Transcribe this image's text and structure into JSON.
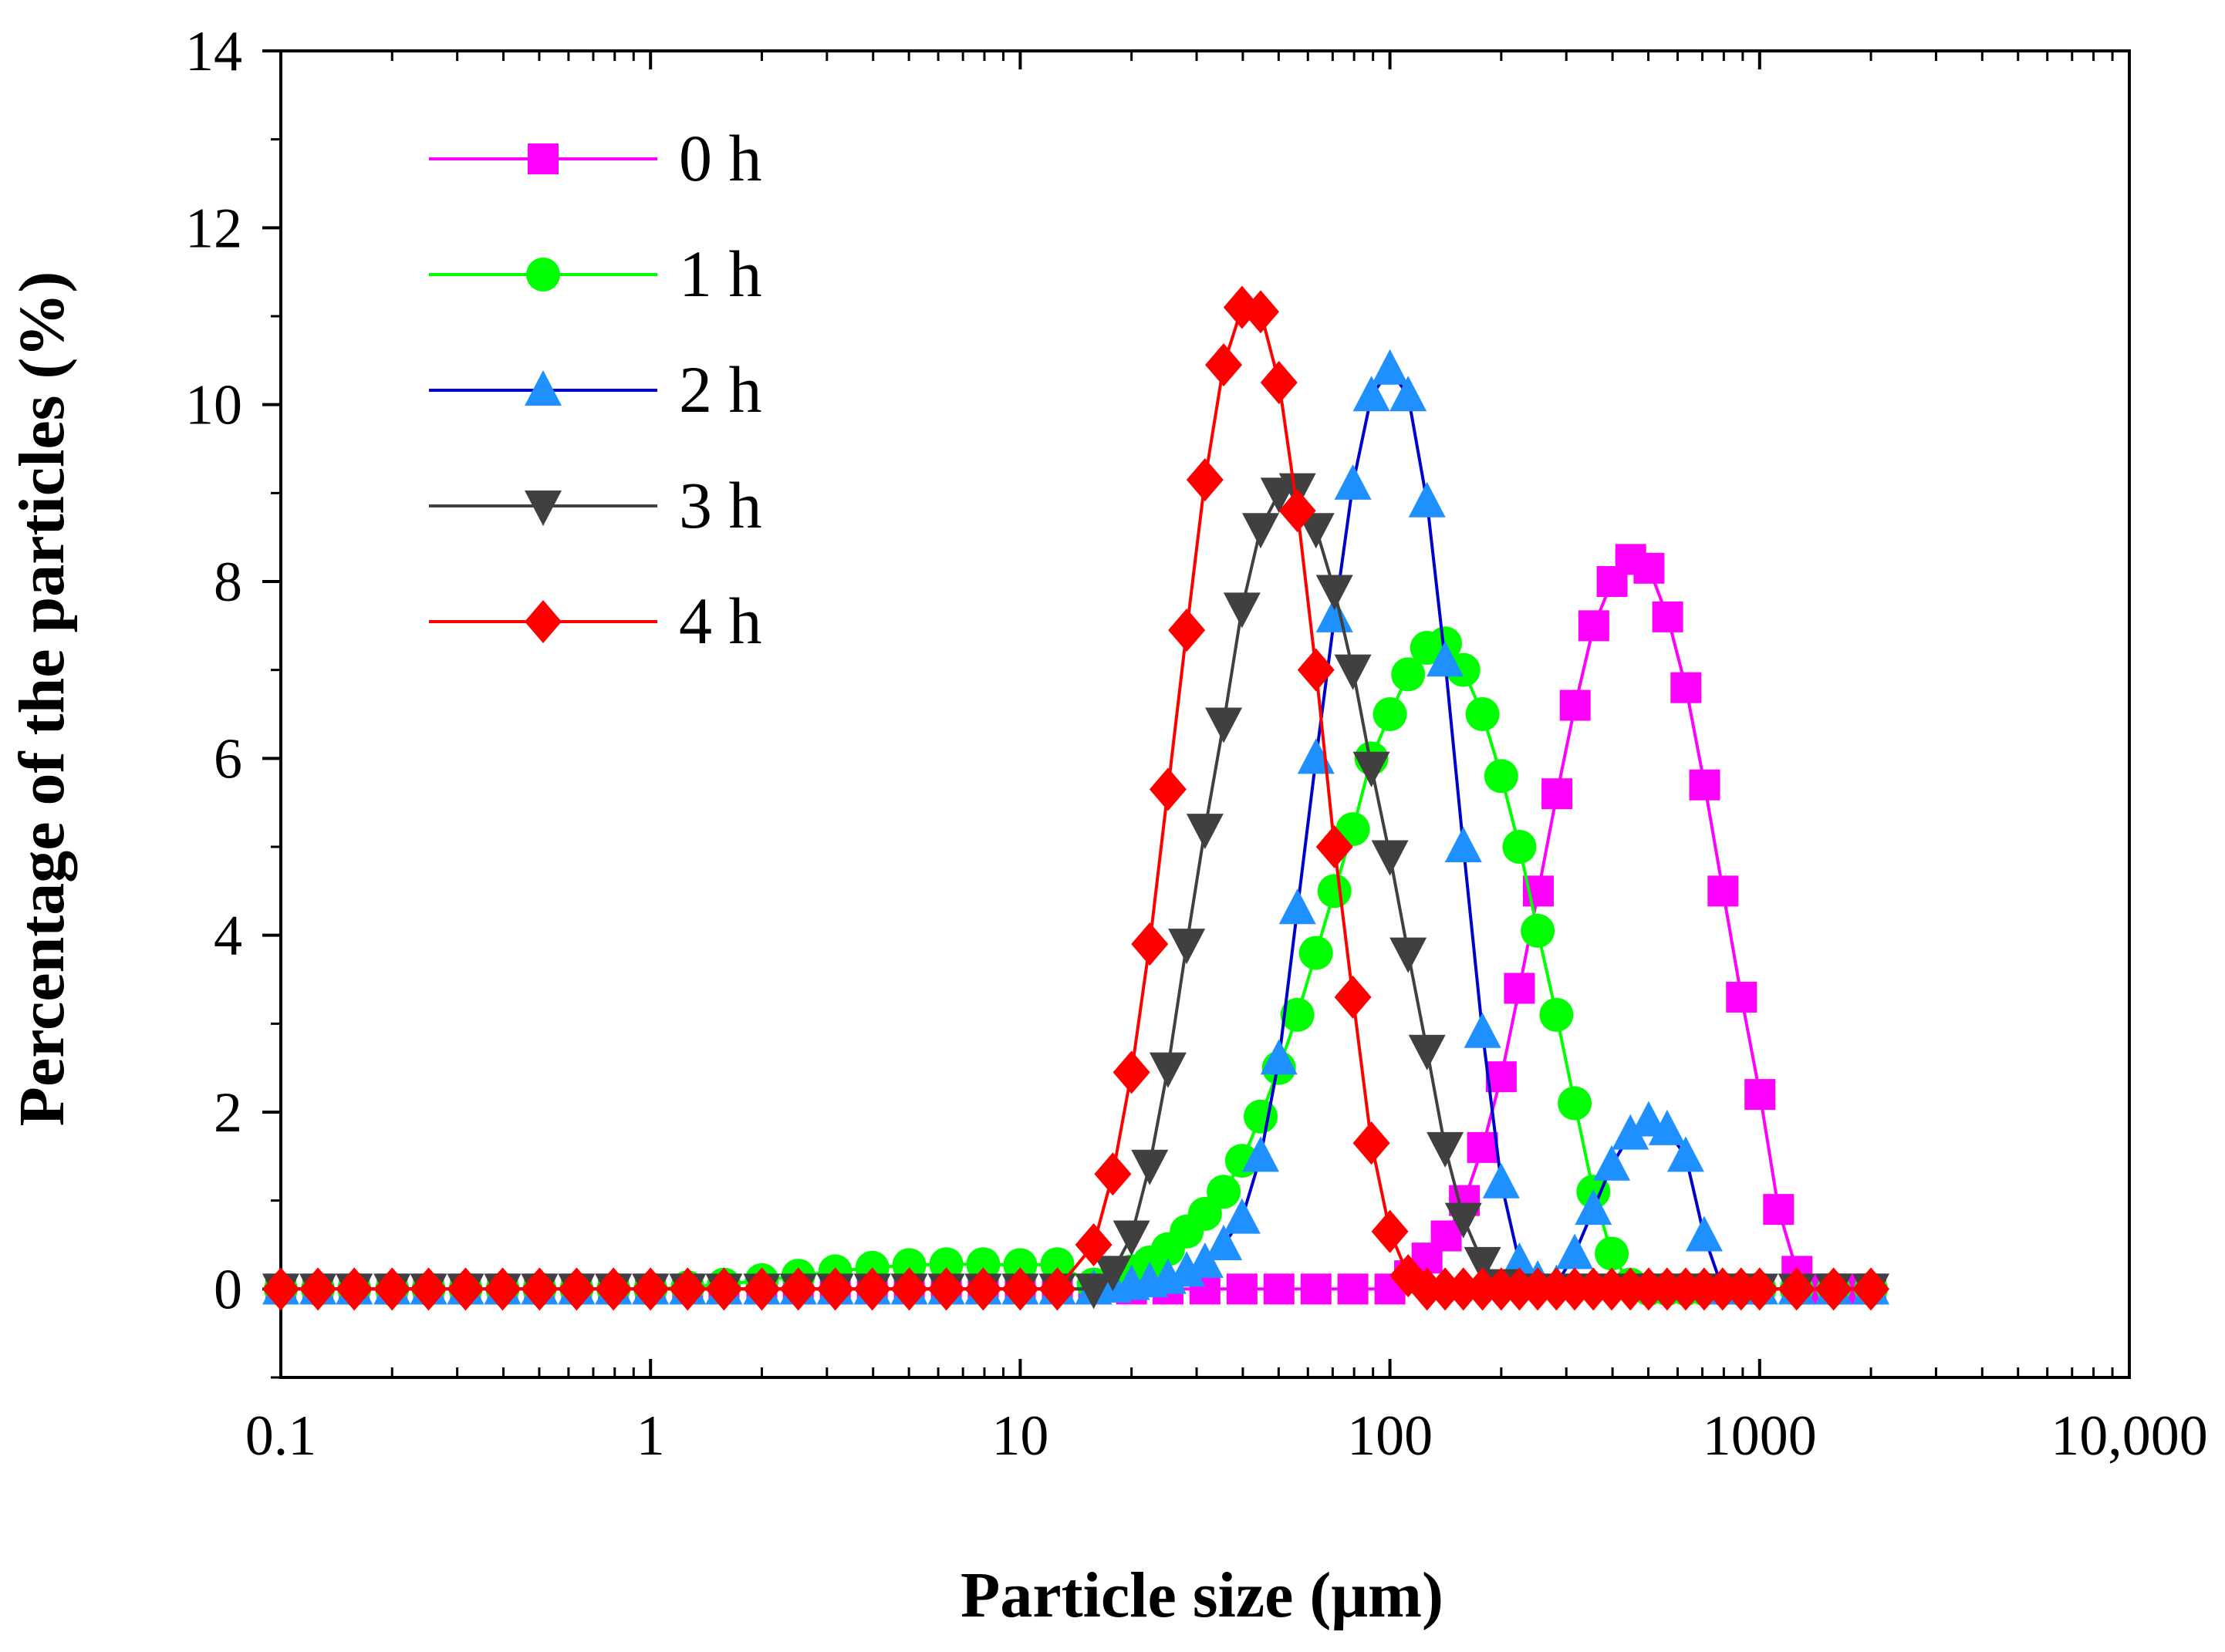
{
  "chart_data": {
    "type": "line",
    "title": "",
    "xlabel": "Particle size (μm)",
    "ylabel": "Percentage of the  particles (%)",
    "x_scale": "log",
    "xlim": [
      0.1,
      10000
    ],
    "ylim": [
      -1,
      14
    ],
    "x_ticks": [
      0.1,
      1,
      10,
      100,
      1000,
      10000
    ],
    "x_tick_labels": [
      "0.1",
      "1",
      "10",
      "100",
      "1000",
      "10,000"
    ],
    "y_ticks": [
      0,
      2,
      4,
      6,
      8,
      10,
      12,
      14
    ],
    "y_tick_labels": [
      "0",
      "2",
      "4",
      "6",
      "8",
      "10",
      "12",
      "14"
    ],
    "grid": false,
    "legend_position": "top-left",
    "series": [
      {
        "name": "0 h",
        "color": "#ff00ff",
        "marker": "square",
        "x": [
          0.1,
          0.126,
          0.158,
          0.2,
          0.251,
          0.316,
          0.398,
          0.501,
          0.631,
          0.794,
          1,
          1.26,
          1.58,
          2,
          2.51,
          3.16,
          3.98,
          5.01,
          6.31,
          7.94,
          10,
          12.6,
          15.8,
          20,
          25.1,
          31.6,
          39.8,
          50.1,
          63.1,
          79.4,
          100,
          113,
          126,
          142,
          159,
          178,
          200,
          224,
          252,
          283,
          317,
          356,
          399,
          448,
          502,
          564,
          632,
          710,
          796,
          893,
          1002,
          1125,
          1262,
          1416,
          1589,
          1783,
          2000
        ],
        "values": [
          0,
          0,
          0,
          0,
          0,
          0,
          0,
          0,
          0,
          0,
          0,
          0,
          0,
          0,
          0,
          0,
          0,
          0,
          0,
          0,
          0,
          0,
          0,
          0,
          0,
          0,
          0,
          0,
          0,
          0,
          0,
          0.15,
          0.35,
          0.6,
          1.0,
          1.6,
          2.4,
          3.4,
          4.5,
          5.6,
          6.6,
          7.5,
          8.0,
          8.25,
          8.15,
          7.6,
          6.8,
          5.7,
          4.5,
          3.3,
          2.2,
          0.9,
          0.2,
          0,
          0,
          0,
          0
        ]
      },
      {
        "name": "1 h",
        "color": "#00ff00",
        "marker": "circle",
        "x": [
          0.1,
          0.126,
          0.158,
          0.2,
          0.251,
          0.316,
          0.398,
          0.501,
          0.631,
          0.794,
          1,
          1.26,
          1.58,
          2,
          2.51,
          3.16,
          3.98,
          5.01,
          6.31,
          7.94,
          10,
          12.6,
          15.8,
          17.8,
          20,
          22.4,
          25.1,
          28.2,
          31.6,
          35.5,
          39.8,
          44.7,
          50.1,
          56.2,
          63.1,
          70.8,
          79.4,
          89.1,
          100,
          112,
          126,
          141,
          158,
          178,
          200,
          224,
          251,
          282,
          316,
          355,
          398,
          447,
          501,
          562,
          631,
          708,
          794,
          891,
          1000,
          1259,
          1585,
          2000
        ],
        "values": [
          0,
          0,
          0,
          0,
          0,
          0,
          0,
          0,
          0,
          0,
          0,
          0.02,
          0.05,
          0.1,
          0.15,
          0.2,
          0.24,
          0.27,
          0.28,
          0.28,
          0.27,
          0.28,
          0.05,
          0.1,
          0.2,
          0.3,
          0.45,
          0.65,
          0.85,
          1.1,
          1.45,
          1.95,
          2.5,
          3.1,
          3.8,
          4.5,
          5.2,
          6.0,
          6.5,
          6.95,
          7.25,
          7.3,
          7.0,
          6.5,
          5.8,
          5.0,
          4.05,
          3.1,
          2.1,
          1.1,
          0.4,
          0.05,
          0,
          0,
          0,
          0,
          0,
          0,
          0,
          0,
          0,
          0
        ]
      },
      {
        "name": "2 h",
        "color": "#0000cc",
        "marker_color": "#1e90ff",
        "marker": "triangle-up",
        "x": [
          0.1,
          0.126,
          0.158,
          0.2,
          0.251,
          0.316,
          0.398,
          0.501,
          0.631,
          0.794,
          1,
          1.26,
          1.58,
          2,
          2.51,
          3.16,
          3.98,
          5.01,
          6.31,
          7.94,
          10,
          12.6,
          15.8,
          17.8,
          20,
          22.4,
          25.1,
          28.2,
          31.6,
          35.5,
          39.8,
          44.7,
          50.1,
          56.2,
          63.1,
          70.8,
          79.4,
          89.1,
          100,
          112,
          126,
          141,
          158,
          178,
          200,
          224,
          251,
          282,
          316,
          355,
          398,
          447,
          501,
          562,
          631,
          708,
          794,
          891,
          1000,
          1259,
          1585,
          2000
        ],
        "values": [
          0,
          0,
          0,
          0,
          0,
          0,
          0,
          0,
          0,
          0,
          0,
          0,
          0,
          0,
          0,
          0,
          0,
          0,
          0,
          0,
          0,
          0,
          0,
          0.02,
          0.05,
          0.08,
          0.12,
          0.2,
          0.3,
          0.5,
          0.8,
          1.5,
          2.6,
          4.3,
          6.0,
          7.6,
          9.1,
          10.1,
          10.4,
          10.1,
          8.9,
          7.1,
          5.0,
          2.9,
          1.2,
          0.3,
          0.1,
          0.05,
          0.4,
          0.9,
          1.4,
          1.75,
          1.9,
          1.8,
          1.5,
          0.6,
          0,
          0,
          0,
          0,
          0,
          0
        ]
      },
      {
        "name": "3 h",
        "color": "#404040",
        "marker": "triangle-down",
        "x": [
          0.1,
          0.126,
          0.158,
          0.2,
          0.251,
          0.316,
          0.398,
          0.501,
          0.631,
          0.794,
          1,
          1.26,
          1.58,
          2,
          2.51,
          3.16,
          3.98,
          5.01,
          6.31,
          7.94,
          10,
          12.6,
          15.8,
          17.8,
          20,
          22.4,
          25.1,
          28.2,
          31.6,
          35.5,
          39.8,
          44.7,
          50.1,
          56.2,
          63.1,
          70.8,
          79.4,
          89.1,
          100,
          112,
          126,
          141,
          158,
          178,
          200,
          224,
          251,
          282,
          316,
          355,
          398,
          447,
          501,
          562,
          631,
          708,
          794,
          891,
          1000,
          1259,
          1585,
          2000
        ],
        "values": [
          0,
          0,
          0,
          0,
          0,
          0,
          0,
          0,
          0,
          0,
          0,
          0,
          0,
          0,
          0,
          0,
          0,
          0,
          0,
          0,
          0,
          0,
          0,
          0.2,
          0.6,
          1.4,
          2.5,
          3.9,
          5.2,
          6.4,
          7.7,
          8.6,
          9.0,
          9.05,
          8.6,
          7.9,
          7.0,
          5.9,
          4.9,
          3.8,
          2.7,
          1.6,
          0.8,
          0.3,
          0.05,
          0,
          0,
          0,
          0,
          0,
          0,
          0,
          0,
          0,
          0,
          0,
          0,
          0,
          0,
          0,
          0,
          0
        ]
      },
      {
        "name": "4 h",
        "color": "#ff0000",
        "marker": "diamond",
        "x": [
          0.1,
          0.126,
          0.158,
          0.2,
          0.251,
          0.316,
          0.398,
          0.501,
          0.631,
          0.794,
          1,
          1.26,
          1.58,
          2,
          2.51,
          3.16,
          3.98,
          5.01,
          6.31,
          7.94,
          10,
          12.6,
          15.8,
          17.8,
          20,
          22.4,
          25.1,
          28.2,
          31.6,
          35.5,
          39.8,
          44.7,
          50.1,
          56.2,
          63.1,
          70.8,
          79.4,
          89.1,
          100,
          112,
          126,
          141,
          158,
          178,
          200,
          224,
          251,
          282,
          316,
          355,
          398,
          447,
          501,
          562,
          631,
          708,
          794,
          891,
          1000,
          1259,
          1585,
          2000
        ],
        "values": [
          0,
          0,
          0,
          0,
          0,
          0,
          0,
          0,
          0,
          0,
          0,
          0,
          0,
          0,
          0,
          0,
          0,
          0,
          0,
          0,
          0,
          0,
          0.5,
          1.3,
          2.45,
          3.9,
          5.65,
          7.45,
          9.15,
          10.45,
          11.1,
          11.05,
          10.25,
          8.8,
          7.0,
          5.0,
          3.3,
          1.65,
          0.65,
          0.15,
          0,
          0,
          0,
          0,
          0,
          0,
          0,
          0,
          0,
          0,
          0,
          0,
          0,
          0,
          0,
          0,
          0,
          0,
          0,
          0,
          0,
          0
        ]
      }
    ]
  }
}
